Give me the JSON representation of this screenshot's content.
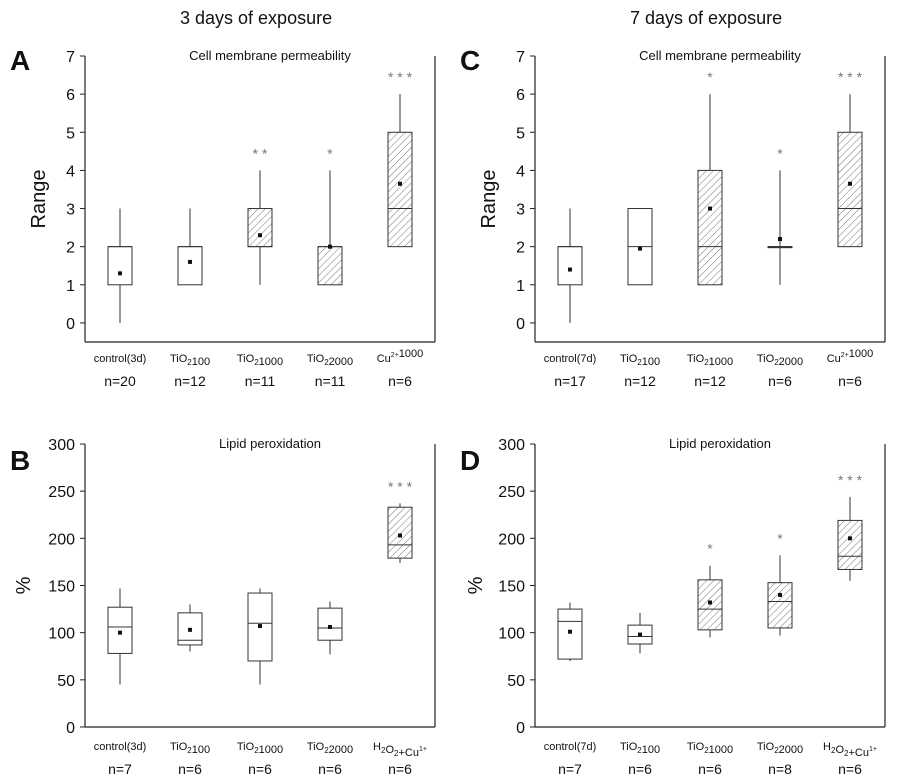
{
  "columns": [
    {
      "title": "3 days of exposure"
    },
    {
      "title": "7 days of exposure"
    }
  ],
  "chart_data": [
    {
      "panel": "A",
      "type": "box",
      "title": "Cell membrane permeability",
      "ylabel": "Range",
      "ylim": [
        -0.5,
        7
      ],
      "yticks": [
        0,
        1,
        2,
        3,
        4,
        5,
        6,
        7
      ],
      "categories": [
        "control(3d)",
        "TiO2 100",
        "TiO2 1000",
        "TiO2 2000",
        "Cu2+ 1000"
      ],
      "n": [
        "n=20",
        "n=12",
        "n=11",
        "n=11",
        "n=6"
      ],
      "significance": [
        "",
        "",
        "* *",
        "*",
        "* * *"
      ],
      "hatched": [
        false,
        false,
        true,
        true,
        true
      ],
      "boxes": [
        {
          "q1": 1,
          "median": 2,
          "q3": 2,
          "min": 0,
          "max": 3,
          "mean": 1.3
        },
        {
          "q1": 1,
          "median": 2,
          "q3": 2,
          "min": 1,
          "max": 3,
          "mean": 1.6
        },
        {
          "q1": 2,
          "median": 2,
          "q3": 3,
          "min": 1,
          "max": 4,
          "mean": 2.3
        },
        {
          "q1": 1,
          "median": 2,
          "q3": 2,
          "min": 1,
          "max": 4,
          "mean": 2.0
        },
        {
          "q1": 2,
          "median": 3,
          "q3": 5,
          "min": 2,
          "max": 6,
          "mean": 3.65
        }
      ]
    },
    {
      "panel": "C",
      "type": "box",
      "title": "Cell membrane permeability",
      "ylabel": "Range",
      "ylim": [
        -0.5,
        7
      ],
      "yticks": [
        0,
        1,
        2,
        3,
        4,
        5,
        6,
        7
      ],
      "categories": [
        "control(7d)",
        "TiO2 100",
        "TiO2 1000",
        "TiO2 2000",
        "Cu2+ 1000"
      ],
      "n": [
        "n=17",
        "n=12",
        "n=12",
        "n=6",
        "n=6"
      ],
      "significance": [
        "",
        "",
        "*",
        "*",
        "* * *"
      ],
      "hatched": [
        false,
        false,
        true,
        false,
        true
      ],
      "boxes": [
        {
          "q1": 1,
          "median": 2,
          "q3": 2,
          "min": 0,
          "max": 3,
          "mean": 1.4
        },
        {
          "q1": 1,
          "median": 2,
          "q3": 3,
          "min": 1,
          "max": 3,
          "mean": 1.95
        },
        {
          "q1": 1,
          "median": 2,
          "q3": 4,
          "min": 1,
          "max": 6,
          "mean": 3.0
        },
        {
          "q1": 2,
          "median": 2,
          "q3": 2,
          "min": 1,
          "max": 4,
          "mean": 2.2
        },
        {
          "q1": 2,
          "median": 3,
          "q3": 5,
          "min": 2,
          "max": 6,
          "mean": 3.65
        }
      ]
    },
    {
      "panel": "B",
      "type": "box",
      "title": "Lipid peroxidation",
      "ylabel": "%",
      "ylim": [
        0,
        300
      ],
      "yticks": [
        0,
        50,
        100,
        150,
        200,
        250,
        300
      ],
      "categories": [
        "control(3d)",
        "TiO2 100",
        "TiO2 1000",
        "TiO2 2000",
        "H2O2+Cu1+"
      ],
      "n": [
        "n=7",
        "n=6",
        "n=6",
        "n=6",
        "n=6"
      ],
      "significance": [
        "",
        "",
        "",
        "",
        "* * *"
      ],
      "hatched": [
        false,
        false,
        false,
        false,
        true
      ],
      "boxes": [
        {
          "q1": 78,
          "median": 106,
          "q3": 127,
          "min": 45,
          "max": 147,
          "mean": 100
        },
        {
          "q1": 87,
          "median": 92,
          "q3": 121,
          "min": 80,
          "max": 130,
          "mean": 103
        },
        {
          "q1": 70,
          "median": 110,
          "q3": 142,
          "min": 45,
          "max": 147,
          "mean": 107
        },
        {
          "q1": 92,
          "median": 105,
          "q3": 126,
          "min": 77,
          "max": 133,
          "mean": 106
        },
        {
          "q1": 179,
          "median": 193,
          "q3": 233,
          "min": 174,
          "max": 237,
          "mean": 203
        }
      ]
    },
    {
      "panel": "D",
      "type": "box",
      "title": "Lipid peroxidation",
      "ylabel": "%",
      "ylim": [
        0,
        300
      ],
      "yticks": [
        0,
        50,
        100,
        150,
        200,
        250,
        300
      ],
      "categories": [
        "control(7d)",
        "TiO2 100",
        "TiO2 1000",
        "TiO2 2000",
        "H2O2+Cu1+"
      ],
      "n": [
        "n=7",
        "n=6",
        "n=6",
        "n=8",
        "n=6"
      ],
      "significance": [
        "",
        "",
        "*",
        "*",
        "* * *"
      ],
      "hatched": [
        false,
        false,
        true,
        true,
        true
      ],
      "boxes": [
        {
          "q1": 72,
          "median": 112,
          "q3": 125,
          "min": 70,
          "max": 132,
          "mean": 101
        },
        {
          "q1": 88,
          "median": 96,
          "q3": 108,
          "min": 78,
          "max": 121,
          "mean": 98
        },
        {
          "q1": 103,
          "median": 125,
          "q3": 156,
          "min": 95,
          "max": 171,
          "mean": 132
        },
        {
          "q1": 105,
          "median": 133,
          "q3": 153,
          "min": 97,
          "max": 182,
          "mean": 140
        },
        {
          "q1": 167,
          "median": 181,
          "q3": 219,
          "min": 155,
          "max": 244,
          "mean": 200
        }
      ]
    }
  ]
}
